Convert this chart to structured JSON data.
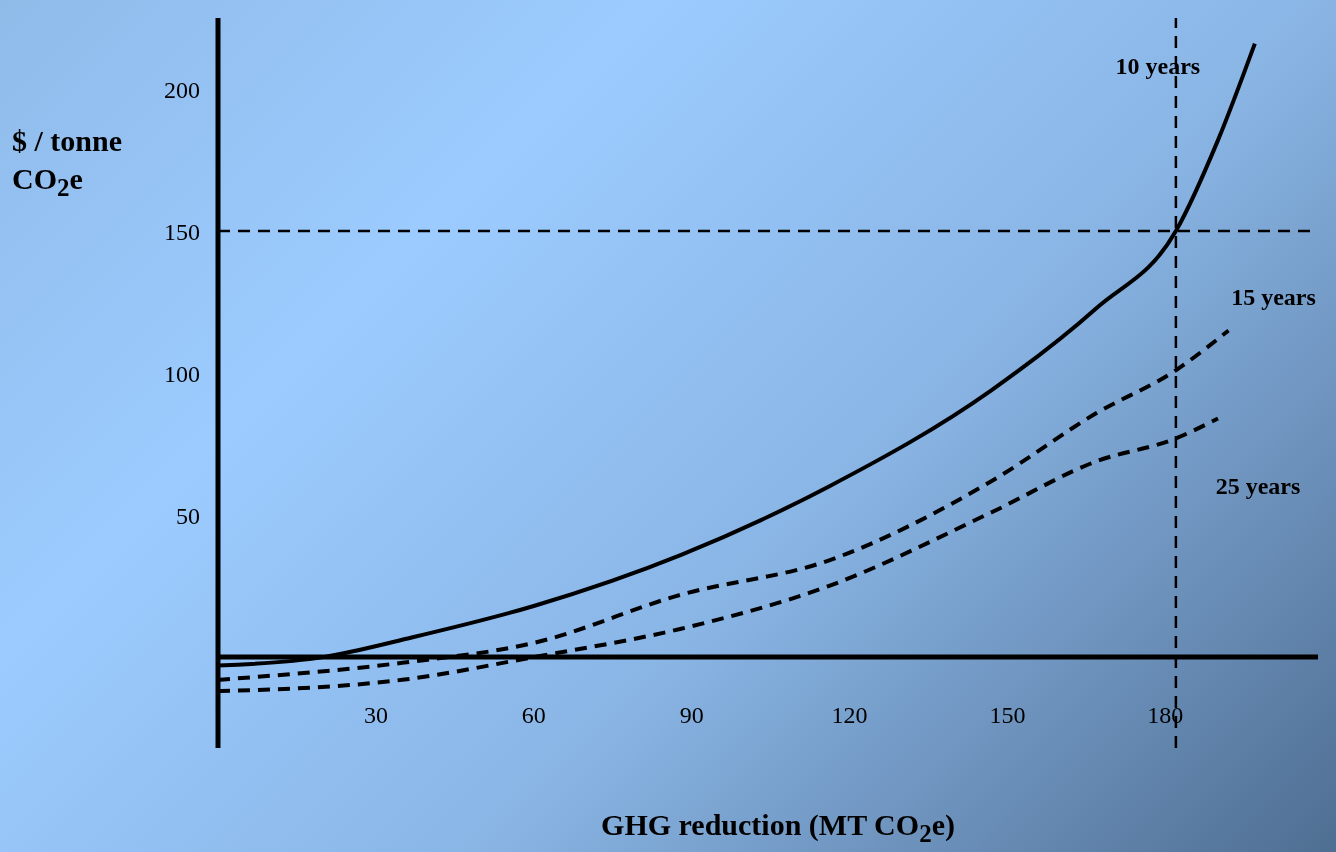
{
  "chart_data": {
    "type": "line",
    "xlabel": "GHG reduction (MT CO$_{2}$e)",
    "ylabel": "$ / tonne CO$_{2}$e",
    "xlim": [
      0,
      209
    ],
    "xticks": [
      30,
      60,
      90,
      120,
      150,
      180
    ],
    "ylim": [
      -32,
      225
    ],
    "yticks": [
      50,
      100,
      150,
      200
    ],
    "marker": "none",
    "series": [
      {
        "name": "10 years",
        "color": "#000000",
        "line_style": "solid",
        "x": [
          0,
          20,
          37,
          60,
          88,
          116,
          147,
          167,
          182,
          190,
          197
        ],
        "values": [
          -3,
          0,
          7,
          18,
          36,
          60,
          94,
          123,
          150,
          182,
          216
        ]
      },
      {
        "name": "15 years",
        "color": "#000000",
        "line_style": "dashed",
        "x": [
          0,
          35,
          60,
          88,
          116,
          147,
          167,
          182,
          192
        ],
        "values": [
          -8,
          -2,
          5,
          22,
          34,
          62,
          86,
          101,
          115
        ]
      },
      {
        "name": "25 years",
        "color": "#000000",
        "line_style": "dashed",
        "x": [
          0,
          35,
          60,
          88,
          116,
          147,
          167,
          182,
          190
        ],
        "values": [
          -12,
          -8,
          0,
          10,
          25,
          51,
          69,
          77,
          84
        ]
      }
    ],
    "ref_lines": [
      {
        "axis": "y",
        "value": 150,
        "line_style": "dashed",
        "color": "#000000"
      },
      {
        "axis": "x",
        "value": 182,
        "line_style": "dashed",
        "color": "#000000"
      }
    ]
  }
}
